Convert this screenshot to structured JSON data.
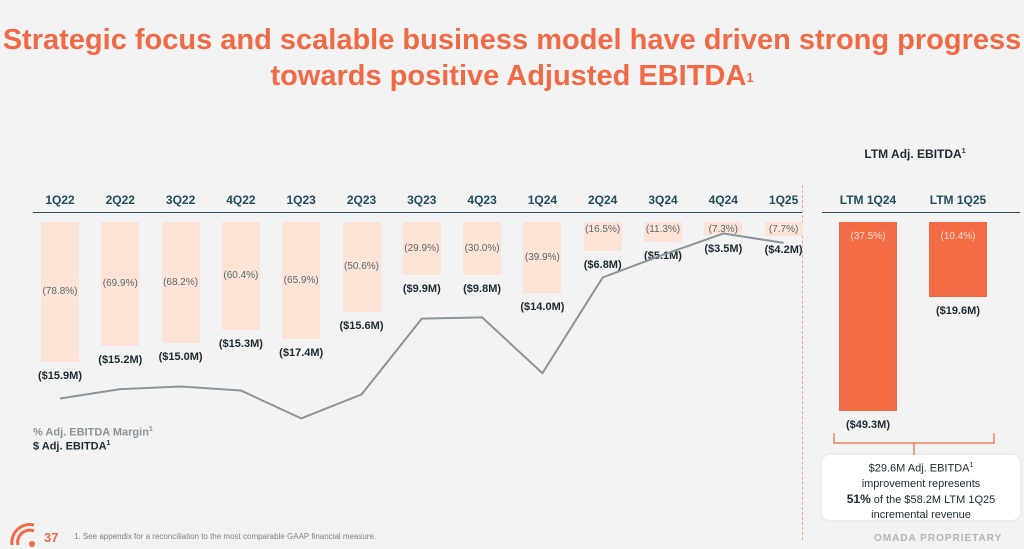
{
  "title_line1": "Strategic focus and scalable business model have driven strong progress",
  "title_line2": "towards positive Adjusted EBITDA",
  "title_superscript": "1",
  "page_number": "37",
  "footnote": "1.   See appendix for a reconciliation to the most comparable GAAP financial measure.",
  "watermark": "OMADA PROPRIETARY",
  "legend": {
    "margin_label": "% Adj. EBITDA Margin",
    "usd_label": "$ Adj. EBITDA",
    "superscript": "1"
  },
  "ltm_title": "LTM Adj. EBITDA",
  "callout": {
    "line1": "$29.6M Adj. EBITDA",
    "line2": "improvement represents",
    "line3_bold": "51%",
    "line3_rest": " of the $58.2M LTM 1Q25",
    "line4": "incremental revenue"
  },
  "colors": {
    "accent": "#f06b45",
    "bar_light": "#fde4d7",
    "bar_dark": "#f26b45",
    "line": "#8b9499"
  },
  "chart_data": [
    {
      "type": "bar",
      "categories": [
        "1Q22",
        "2Q22",
        "3Q22",
        "4Q22",
        "1Q23",
        "2Q23",
        "3Q23",
        "4Q23",
        "1Q24",
        "2Q24",
        "3Q24",
        "4Q24",
        "1Q25"
      ],
      "series": [
        {
          "name": "% Adj. EBITDA Margin",
          "values": [
            -78.8,
            -69.9,
            -68.2,
            -60.4,
            -65.9,
            -50.6,
            -29.9,
            -30.0,
            -39.9,
            -16.5,
            -11.3,
            -7.3,
            -7.7
          ],
          "labels": [
            "(78.8%)",
            "(69.9%)",
            "(68.2%)",
            "(60.4%)",
            "(65.9%)",
            "(50.6%)",
            "(29.9%)",
            "(30.0%)",
            "(39.9%)",
            "(16.5%)",
            "(11.3%)",
            "(7.3%)",
            "(7.7%)"
          ]
        },
        {
          "name": "$ Adj. EBITDA",
          "values": [
            -15.9,
            -15.2,
            -15.0,
            -15.3,
            -17.4,
            -15.6,
            -9.9,
            -9.8,
            -14.0,
            -6.8,
            -5.1,
            -3.5,
            -4.2
          ],
          "labels": [
            "($15.9M)",
            "($15.2M)",
            "($15.0M)",
            "($15.3M)",
            "($17.4M)",
            "($15.6M)",
            "($9.9M)",
            "($9.8M)",
            "($14.0M)",
            "($6.8M)",
            "($5.1M)",
            "($3.5M)",
            "($4.2M)"
          ]
        }
      ]
    },
    {
      "type": "bar",
      "title": "LTM Adj. EBITDA",
      "categories": [
        "LTM 1Q24",
        "LTM 1Q25"
      ],
      "series": [
        {
          "name": "$ Adj. EBITDA",
          "values": [
            -49.3,
            -19.6
          ],
          "labels": [
            "($49.3M)",
            "($19.6M)"
          ]
        },
        {
          "name": "% Adj. EBITDA Margin",
          "values": [
            -37.5,
            -10.4
          ],
          "labels": [
            "(37.5%)",
            "(10.4%)"
          ]
        }
      ]
    }
  ]
}
